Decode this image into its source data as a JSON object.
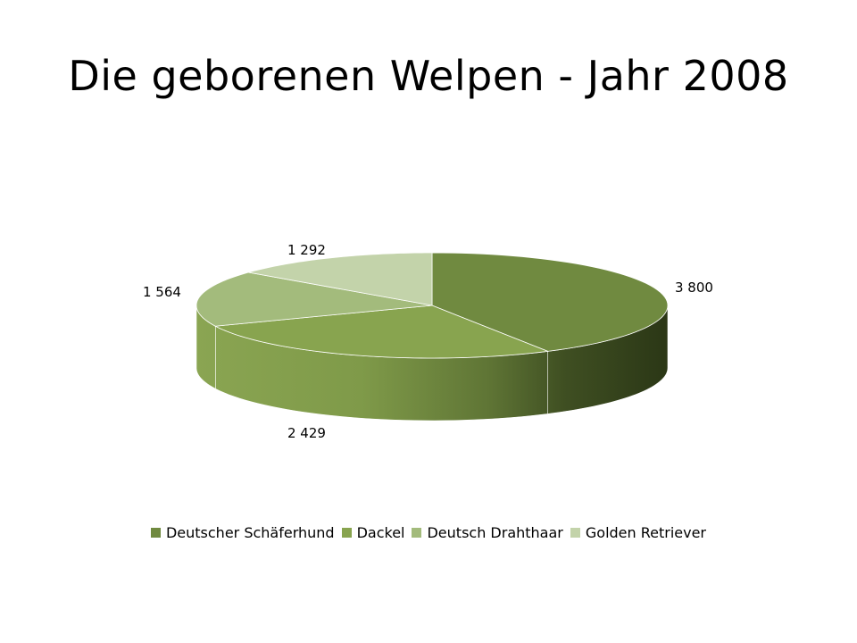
{
  "title": "Die geborenen Welpen - Jahr 2008",
  "colors": {
    "Deutscher Schäferhund": "#708a40",
    "Dackel": "#88a44f",
    "Deutsch Drahthaar": "#a3bb7c",
    "Golden Retriever": "#c3d3aa"
  },
  "legend_position": "bottom",
  "chart_data": {
    "type": "pie",
    "style": "3d",
    "title": "Die geborenen Welpen - Jahr 2008",
    "categories": [
      "Deutscher Schäferhund",
      "Dackel",
      "Deutsch Drahthaar",
      "Golden Retriever"
    ],
    "values": [
      3800,
      2429,
      1564,
      1292
    ],
    "labels": [
      "3 800",
      "2 429",
      "1 564",
      "1 292"
    ]
  }
}
